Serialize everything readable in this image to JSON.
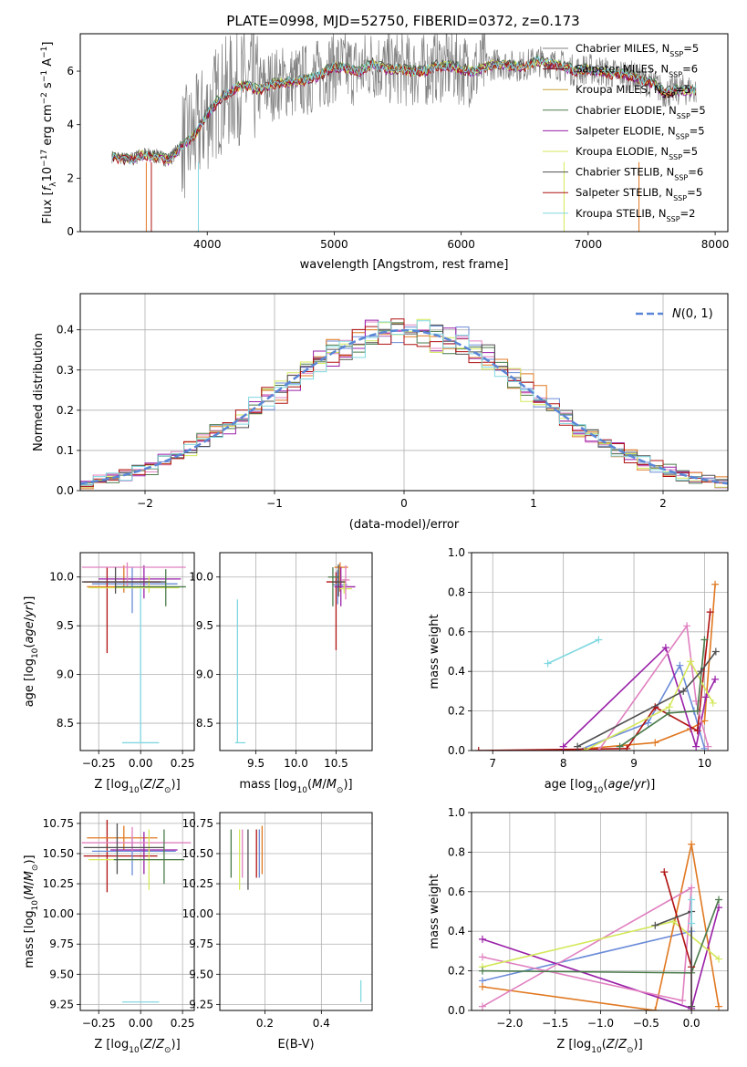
{
  "title": "PLATE=0998, MJD=52750, FIBERID=0372, z=0.173",
  "colors": {
    "Chabrier MILES": "#808080",
    "Salpeter MILES": "#6b0f1a",
    "Kroupa MILES": "#c8a23c",
    "Chabrier ELODIE": "#4a7a4a",
    "Salpeter ELODIE": "#9a1fa8",
    "Kroupa ELODIE": "#d4e85a",
    "Chabrier STELIB": "#505050",
    "Salpeter STELIB": "#b01010",
    "Kroupa STELIB": "#80d8e0",
    "hist1": "#6a8bd8",
    "hist2": "#e080c0",
    "hist3": "#e07820",
    "normal": "#5a86d6"
  },
  "chart_data": [
    {
      "id": "spectrum",
      "type": "line",
      "xlabel": "wavelength [Angstrom, rest frame]",
      "ylabel": "Flux [f_λ 10^-17 erg cm^-2 s^-1 A^-1]",
      "xlim": [
        3000,
        8100
      ],
      "ylim": [
        0,
        7.4
      ],
      "xticks": [
        4000,
        5000,
        6000,
        7000,
        8000
      ],
      "yticks": [
        0,
        2,
        4,
        6
      ],
      "legend_position": "top-right",
      "grid": false,
      "legend": [
        {
          "label": "Chabrier MILES, N",
          "sub": "SSP",
          "suffix": "=5",
          "color": "#808080"
        },
        {
          "label": "Salpeter MILES, N",
          "sub": "SSP",
          "suffix": "=6",
          "color": "#6b0f1a"
        },
        {
          "label": "Kroupa MILES, N",
          "sub": "SSP",
          "suffix": "=5",
          "color": "#c8a23c"
        },
        {
          "label": "Chabrier ELODIE, N",
          "sub": "SSP",
          "suffix": "=5",
          "color": "#4a7a4a"
        },
        {
          "label": "Salpeter ELODIE, N",
          "sub": "SSP",
          "suffix": "=5",
          "color": "#9a1fa8"
        },
        {
          "label": "Kroupa ELODIE, N",
          "sub": "SSP",
          "suffix": "=5",
          "color": "#d4e85a"
        },
        {
          "label": "Chabrier STELIB, N",
          "sub": "SSP",
          "suffix": "=6",
          "color": "#505050"
        },
        {
          "label": "Salpeter STELIB, N",
          "sub": "SSP",
          "suffix": "=5",
          "color": "#b01010"
        },
        {
          "label": "Kroupa STELIB, N",
          "sub": "SSP",
          "suffix": "=2",
          "color": "#80d8e0"
        }
      ],
      "model_continuum": {
        "x": [
          3250,
          3400,
          3500,
          3600,
          3700,
          3800,
          3900,
          4000,
          4100,
          4200,
          4300,
          4400,
          4500,
          4600,
          4700,
          4800,
          4900,
          5000,
          5100,
          5200,
          5300,
          5400,
          5500,
          5600,
          5700,
          5800,
          5900,
          6000,
          6100,
          6200,
          6300,
          6400,
          6500,
          6600,
          6700,
          6800,
          6900,
          7000,
          7100,
          7200,
          7300,
          7400,
          7500,
          7600,
          7700,
          7850
        ],
        "y": [
          2.8,
          2.7,
          2.9,
          2.8,
          2.7,
          3.2,
          3.6,
          4.4,
          5.0,
          5.3,
          5.5,
          5.3,
          5.5,
          5.6,
          5.6,
          5.7,
          5.9,
          6.2,
          6.1,
          6.0,
          6.3,
          6.1,
          6.1,
          6.0,
          6.0,
          6.2,
          6.2,
          6.1,
          6.0,
          6.2,
          6.3,
          6.2,
          6.2,
          6.4,
          6.3,
          6.2,
          6.0,
          6.1,
          6.0,
          5.9,
          5.9,
          5.7,
          5.6,
          5.2,
          5.3,
          5.3
        ]
      }
    },
    {
      "id": "residuals",
      "type": "step",
      "xlabel": "(data-model)/error",
      "ylabel": "Normed distribution",
      "xlim": [
        -2.5,
        2.5
      ],
      "ylim": [
        0,
        0.49
      ],
      "xticks": [
        -2,
        -1,
        0,
        1,
        2
      ],
      "yticks": [
        0.0,
        0.1,
        0.2,
        0.3,
        0.4
      ],
      "grid": true,
      "legend_position": "top-right",
      "normal_label": "N(0,1)",
      "normal": {
        "mean": 0,
        "sigma": 1
      }
    },
    {
      "id": "age-vs-Z",
      "type": "errorbar",
      "xlabel": "Z [log10(Z/Z_sun)]",
      "ylabel": "age [log10(age/yr)]",
      "xlim": [
        -0.36,
        0.32
      ],
      "ylim": [
        8.22,
        10.25
      ],
      "xticks": [
        -0.25,
        0.0,
        0.25
      ],
      "yticks": [
        8.5,
        9.0,
        9.5,
        10.0
      ],
      "grid": true,
      "points": [
        {
          "x": 0.0,
          "xerr": [
            0.11,
            0.11
          ],
          "y": 8.3,
          "yerr": [
            0.0,
            1.6
          ],
          "color": "#80d8e0"
        },
        {
          "x": -0.1,
          "xerr": [
            0.22,
            0.25
          ],
          "y": 9.9,
          "yerr": [
            0.06,
            0.22
          ],
          "color": "#e07820"
        },
        {
          "x": -0.05,
          "xerr": [
            0.24,
            0.27
          ],
          "y": 9.93,
          "yerr": [
            0.3,
            0.17
          ],
          "color": "#6a8bd8"
        },
        {
          "x": -0.2,
          "xerr": [
            0.14,
            0.32
          ],
          "y": 9.95,
          "yerr": [
            0.73,
            0.15
          ],
          "color": "#b01010"
        },
        {
          "x": 0.02,
          "xerr": [
            0.27,
            0.22
          ],
          "y": 9.98,
          "yerr": [
            0.2,
            0.14
          ],
          "color": "#9a1fa8"
        },
        {
          "x": -0.08,
          "xerr": [
            0.27,
            0.35
          ],
          "y": 10.1,
          "yerr": [
            0.2,
            0.05
          ],
          "color": "#e080c0"
        },
        {
          "x": 0.05,
          "xerr": [
            0.36,
            0.18
          ],
          "y": 9.89,
          "yerr": [
            0.05,
            0.12
          ],
          "color": "#d4e85a"
        },
        {
          "x": 0.15,
          "xerr": [
            0.3,
            0.12
          ],
          "y": 9.9,
          "yerr": [
            0.2,
            0.18
          ],
          "color": "#4a7a4a"
        },
        {
          "x": -0.15,
          "xerr": [
            0.2,
            0.3
          ],
          "y": 9.95,
          "yerr": [
            0.12,
            0.15
          ],
          "color": "#505050"
        }
      ]
    },
    {
      "id": "age-vs-mass",
      "type": "errorbar",
      "xlabel": "mass [log10(M/M_sun)]",
      "ylabel": "",
      "xlim": [
        9.05,
        10.95
      ],
      "ylim": [
        8.22,
        10.25
      ],
      "xticks": [
        9.5,
        10.0,
        10.5
      ],
      "yticks": [
        8.5,
        9.0,
        9.5,
        10.0
      ],
      "grid": true,
      "points": [
        {
          "x": 9.27,
          "xerr": [
            0.03,
            0.1
          ],
          "y": 8.3,
          "yerr": [
            0.0,
            1.47
          ],
          "color": "#80d8e0"
        },
        {
          "x": 10.5,
          "xerr": [
            0.12,
            0.12
          ],
          "y": 9.95,
          "yerr": [
            0.7,
            0.1
          ],
          "color": "#b01010"
        },
        {
          "x": 10.55,
          "xerr": [
            0.07,
            0.1
          ],
          "y": 10.1,
          "yerr": [
            0.25,
            0.05
          ],
          "color": "#e07820"
        },
        {
          "x": 10.52,
          "xerr": [
            0.06,
            0.12
          ],
          "y": 9.92,
          "yerr": [
            0.2,
            0.15
          ],
          "color": "#6a8bd8"
        },
        {
          "x": 10.56,
          "xerr": [
            0.08,
            0.18
          ],
          "y": 9.9,
          "yerr": [
            0.2,
            0.2
          ],
          "color": "#9a1fa8"
        },
        {
          "x": 10.46,
          "xerr": [
            0.06,
            0.08
          ],
          "y": 10.0,
          "yerr": [
            0.3,
            0.1
          ],
          "color": "#4a7a4a"
        },
        {
          "x": 10.6,
          "xerr": [
            0.05,
            0.1
          ],
          "y": 9.88,
          "yerr": [
            0.05,
            0.1
          ],
          "color": "#d4e85a"
        },
        {
          "x": 10.62,
          "xerr": [
            0.05,
            0.05
          ],
          "y": 9.97,
          "yerr": [
            0.2,
            0.15
          ],
          "color": "#e080c0"
        },
        {
          "x": 10.53,
          "xerr": [
            0.08,
            0.08
          ],
          "y": 9.95,
          "yerr": [
            0.15,
            0.18
          ],
          "color": "#505050"
        }
      ]
    },
    {
      "id": "weight-vs-age",
      "type": "line",
      "xlabel": "age [log10(age/yr)]",
      "ylabel": "mass weight",
      "xlim": [
        6.7,
        10.33
      ],
      "ylim": [
        0,
        1.0
      ],
      "xticks": [
        7,
        8,
        9,
        10
      ],
      "yticks": [
        0.0,
        0.2,
        0.4,
        0.6,
        0.8,
        1.0
      ],
      "grid": true,
      "series": [
        {
          "color": "#80d8e0",
          "x": [
            7.78,
            8.5
          ],
          "y": [
            0.44,
            0.56
          ]
        },
        {
          "color": "#e07820",
          "x": [
            8.0,
            9.3,
            9.8,
            10.0,
            10.15
          ],
          "y": [
            0.0,
            0.04,
            0.11,
            0.15,
            0.84
          ]
        },
        {
          "color": "#6a8bd8",
          "x": [
            8.2,
            9.2,
            9.65,
            9.85,
            10.0
          ],
          "y": [
            0.0,
            0.14,
            0.43,
            0.2,
            0.01
          ]
        },
        {
          "color": "#b01010",
          "x": [
            6.8,
            8.9,
            9.3,
            9.9,
            10.08
          ],
          "y": [
            0.0,
            0.01,
            0.22,
            0.1,
            0.7
          ]
        },
        {
          "color": "#9a1fa8",
          "x": [
            8.0,
            9.45,
            9.88,
            10.02,
            10.15
          ],
          "y": [
            0.02,
            0.52,
            0.02,
            0.27,
            0.36
          ]
        },
        {
          "color": "#e080c0",
          "x": [
            8.5,
            9.75,
            9.88,
            10.05
          ],
          "y": [
            0.0,
            0.63,
            0.25,
            0.02
          ]
        },
        {
          "color": "#d4e85a",
          "x": [
            8.3,
            9.5,
            9.8,
            10.12
          ],
          "y": [
            0.0,
            0.22,
            0.45,
            0.24
          ]
        },
        {
          "color": "#4a7a4a",
          "x": [
            8.8,
            9.5,
            9.9,
            10.0
          ],
          "y": [
            0.02,
            0.19,
            0.2,
            0.56
          ]
        },
        {
          "color": "#505050",
          "x": [
            8.2,
            9.7,
            9.95,
            10.16
          ],
          "y": [
            0.02,
            0.3,
            0.4,
            0.5
          ]
        }
      ]
    },
    {
      "id": "mass-vs-Z",
      "type": "errorbar",
      "xlabel": "Z [log10(Z/Z_sun)]",
      "ylabel": "mass [log10(M/M_sun)]",
      "xlim": [
        -0.36,
        0.32
      ],
      "ylim": [
        9.2,
        10.84
      ],
      "xticks": [
        -0.25,
        0.0,
        0.25
      ],
      "yticks": [
        9.25,
        9.5,
        9.75,
        10.0,
        10.25,
        10.5,
        10.75
      ],
      "grid": true,
      "points": [
        {
          "x": 0.0,
          "xerr": [
            0.11,
            0.11
          ],
          "y": 9.27,
          "yerr": [
            0.0,
            0.0
          ],
          "color": "#80d8e0"
        },
        {
          "x": -0.2,
          "xerr": [
            0.14,
            0.3
          ],
          "y": 10.48,
          "yerr": [
            0.3,
            0.3
          ],
          "color": "#b01010"
        },
        {
          "x": -0.1,
          "xerr": [
            0.22,
            0.2
          ],
          "y": 10.63,
          "yerr": [
            0.1,
            0.1
          ],
          "color": "#e07820"
        },
        {
          "x": -0.05,
          "xerr": [
            0.24,
            0.26
          ],
          "y": 10.52,
          "yerr": [
            0.2,
            0.12
          ],
          "color": "#6a8bd8"
        },
        {
          "x": 0.02,
          "xerr": [
            0.2,
            0.2
          ],
          "y": 10.53,
          "yerr": [
            0.2,
            0.15
          ],
          "color": "#9a1fa8"
        },
        {
          "x": -0.05,
          "xerr": [
            0.3,
            0.35
          ],
          "y": 10.59,
          "yerr": [
            0.07,
            0.13
          ],
          "color": "#e080c0"
        },
        {
          "x": 0.05,
          "xerr": [
            0.36,
            0.2
          ],
          "y": 10.45,
          "yerr": [
            0.25,
            0.25
          ],
          "color": "#d4e85a"
        },
        {
          "x": 0.14,
          "xerr": [
            0.3,
            0.12
          ],
          "y": 10.45,
          "yerr": [
            0.2,
            0.25
          ],
          "color": "#4a7a4a"
        },
        {
          "x": -0.14,
          "xerr": [
            0.2,
            0.28
          ],
          "y": 10.55,
          "yerr": [
            0.22,
            0.2
          ],
          "color": "#505050"
        }
      ]
    },
    {
      "id": "mass-vs-EBV",
      "type": "errorbar",
      "xlabel": "E(B-V)",
      "ylabel": "",
      "xlim": [
        0.04,
        0.58
      ],
      "ylim": [
        9.2,
        10.84
      ],
      "xticks": [
        0.2,
        0.4
      ],
      "yticks": [
        9.25,
        9.5,
        9.75,
        10.0,
        10.25,
        10.5,
        10.75
      ],
      "grid": true,
      "points": [
        {
          "x": 0.54,
          "xerr": [
            0,
            0
          ],
          "y": 9.35,
          "yerr": [
            0.08,
            0.1
          ],
          "color": "#80d8e0"
        },
        {
          "x": 0.08,
          "xerr": [
            0,
            0
          ],
          "y": 10.5,
          "yerr": [
            0.2,
            0.2
          ],
          "color": "#4a7a4a"
        },
        {
          "x": 0.11,
          "xerr": [
            0,
            0
          ],
          "y": 10.45,
          "yerr": [
            0.25,
            0.25
          ],
          "color": "#d4e85a"
        },
        {
          "x": 0.12,
          "xerr": [
            0,
            0
          ],
          "y": 10.5,
          "yerr": [
            0.2,
            0.2
          ],
          "color": "#e080c0"
        },
        {
          "x": 0.14,
          "xerr": [
            0,
            0
          ],
          "y": 10.45,
          "yerr": [
            0.25,
            0.25
          ],
          "color": "#505050"
        },
        {
          "x": 0.17,
          "xerr": [
            0,
            0
          ],
          "y": 10.5,
          "yerr": [
            0.2,
            0.2
          ],
          "color": "#b01010"
        },
        {
          "x": 0.18,
          "xerr": [
            0,
            0
          ],
          "y": 10.5,
          "yerr": [
            0.2,
            0.2
          ],
          "color": "#6a8bd8"
        },
        {
          "x": 0.19,
          "xerr": [
            0,
            0
          ],
          "y": 10.53,
          "yerr": [
            0.2,
            0.2
          ],
          "color": "#e07820"
        }
      ]
    },
    {
      "id": "weight-vs-Z",
      "type": "line",
      "xlabel": "Z [log10(Z/Z_sun)]",
      "ylabel": "mass weight",
      "xlim": [
        -2.42,
        0.4
      ],
      "ylim": [
        0,
        1.0
      ],
      "xticks": [
        -2.0,
        -1.5,
        -1.0,
        -0.5,
        0.0
      ],
      "yticks": [
        0.0,
        0.2,
        0.4,
        0.6,
        0.8,
        1.0
      ],
      "grid": true,
      "series": [
        {
          "color": "#6a8bd8",
          "x": [
            -2.3,
            0.0,
            0.0
          ],
          "y": [
            0.15,
            0.4,
            0.01
          ]
        },
        {
          "color": "#e07820",
          "x": [
            -2.3,
            -0.4,
            0.0,
            0.3
          ],
          "y": [
            0.12,
            0.0,
            0.84,
            0.02
          ]
        },
        {
          "color": "#9a1fa8",
          "x": [
            -2.3,
            0.0,
            0.3
          ],
          "y": [
            0.36,
            0.01,
            0.52
          ]
        },
        {
          "color": "#e080c0",
          "x": [
            -2.3,
            -0.1,
            0.0,
            -2.3
          ],
          "y": [
            0.27,
            0.05,
            0.62,
            0.02
          ]
        },
        {
          "color": "#d4e85a",
          "x": [
            -2.3,
            -0.2,
            0.3
          ],
          "y": [
            0.22,
            0.45,
            0.26
          ]
        },
        {
          "color": "#4a7a4a",
          "x": [
            -2.3,
            0.0,
            0.3
          ],
          "y": [
            0.2,
            0.19,
            0.56
          ]
        },
        {
          "color": "#b01010",
          "x": [
            -0.3,
            0.0,
            0.0
          ],
          "y": [
            0.7,
            0.22,
            0.0
          ]
        },
        {
          "color": "#505050",
          "x": [
            -0.4,
            0.0,
            0.0
          ],
          "y": [
            0.43,
            0.5,
            0.02
          ]
        },
        {
          "color": "#80d8e0",
          "x": [
            0.0,
            0.0
          ],
          "y": [
            0.44,
            0.56
          ]
        }
      ]
    }
  ]
}
